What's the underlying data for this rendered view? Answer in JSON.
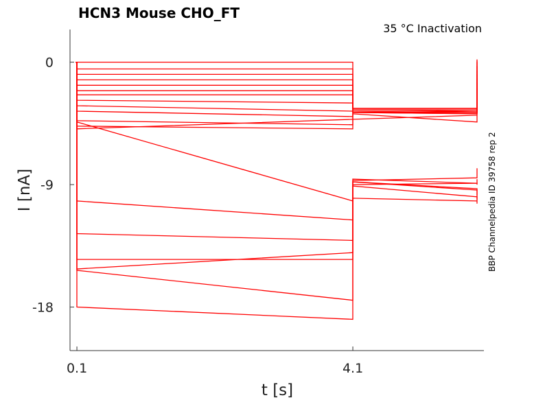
{
  "chart_data": {
    "type": "line",
    "title": "HCN3  Mouse  CHO_FT",
    "annotation": "35 °C  Inactivation",
    "side_note": "BBP Channelpedia ID 39758 rep 2",
    "xlabel": "t [s]",
    "ylabel": "I [nA]",
    "xlim": [
      0.0,
      6.0
    ],
    "ylim": [
      -21.2,
      2.4
    ],
    "x_ticks": [
      0.1,
      4.1
    ],
    "x_tick_labels": [
      "0.1",
      "4.1"
    ],
    "y_ticks": [
      0,
      -9,
      -18
    ],
    "y_tick_labels": [
      "0",
      "-9",
      "-18"
    ],
    "grid": false,
    "legend": "none",
    "line_color": "#ff0000",
    "protocol": {
      "step_on": 0.1,
      "step_off": 4.1,
      "end": 5.9
    },
    "traces": [
      {
        "p1_start": 0.0,
        "p1_end": 0.0,
        "p2_start": -3.4,
        "p2_end": -3.4,
        "p3_end": 0.2
      },
      {
        "p1_start": -0.5,
        "p1_end": -0.5,
        "p2_start": -3.4,
        "p2_end": -3.4,
        "p3_end": 0.1
      },
      {
        "p1_start": -0.9,
        "p1_end": -0.9,
        "p2_start": -3.4,
        "p2_end": -3.4,
        "p3_end": 0.0
      },
      {
        "p1_start": -1.3,
        "p1_end": -1.3,
        "p2_start": -3.5,
        "p2_end": -3.5,
        "p3_end": -0.3
      },
      {
        "p1_start": -1.7,
        "p1_end": -1.7,
        "p2_start": -3.5,
        "p2_end": -3.6,
        "p3_end": -0.6
      },
      {
        "p1_start": -2.1,
        "p1_end": -2.1,
        "p2_start": -3.6,
        "p2_end": -3.7,
        "p3_end": -0.9
      },
      {
        "p1_start": -2.4,
        "p1_end": -2.4,
        "p2_start": -3.7,
        "p2_end": -3.8,
        "p3_end": -1.2
      },
      {
        "p1_start": -2.8,
        "p1_end": -3.0,
        "p2_start": -3.7,
        "p2_end": -3.8,
        "p3_end": -1.5
      },
      {
        "p1_start": -3.2,
        "p1_end": -3.6,
        "p2_start": -3.7,
        "p2_end": -3.7,
        "p3_end": -1.9
      },
      {
        "p1_start": -3.6,
        "p1_end": -4.0,
        "p2_start": -3.8,
        "p2_end": -4.4,
        "p3_end": -2.4
      },
      {
        "p1_start": -4.3,
        "p1_end": -4.6,
        "p2_start": -3.7,
        "p2_end": -3.7,
        "p3_end": -2.9
      },
      {
        "p1_start": -4.7,
        "p1_end": -4.9,
        "p2_start": -3.7,
        "p2_end": -3.6,
        "p3_end": -3.4
      },
      {
        "p1_start": -4.9,
        "p1_end": -4.2,
        "p2_start": -4.2,
        "p2_end": -3.9,
        "p3_end": -3.9
      },
      {
        "p1_start": -4.4,
        "p1_end": -10.2,
        "p2_start": -8.8,
        "p2_end": -9.3,
        "p3_end": -9.8
      },
      {
        "p1_start": -10.2,
        "p1_end": -11.6,
        "p2_start": -8.8,
        "p2_end": -9.4,
        "p3_end": -10.1
      },
      {
        "p1_start": -12.6,
        "p1_end": -13.1,
        "p2_start": -8.6,
        "p2_end": -8.9,
        "p3_end": -9.0
      },
      {
        "p1_start": -14.5,
        "p1_end": -14.5,
        "p2_start": -9.1,
        "p2_end": -9.9,
        "p3_end": -10.4
      },
      {
        "p1_start": -15.2,
        "p1_end": -14.0,
        "p2_start": -9.0,
        "p2_end": -8.9,
        "p3_end": -8.6
      },
      {
        "p1_start": -15.3,
        "p1_end": -17.5,
        "p2_start": -10.0,
        "p2_end": -10.2,
        "p3_end": -10.2
      },
      {
        "p1_start": -18.0,
        "p1_end": -18.9,
        "p2_start": -8.7,
        "p2_end": -8.5,
        "p3_end": -7.8
      }
    ]
  }
}
